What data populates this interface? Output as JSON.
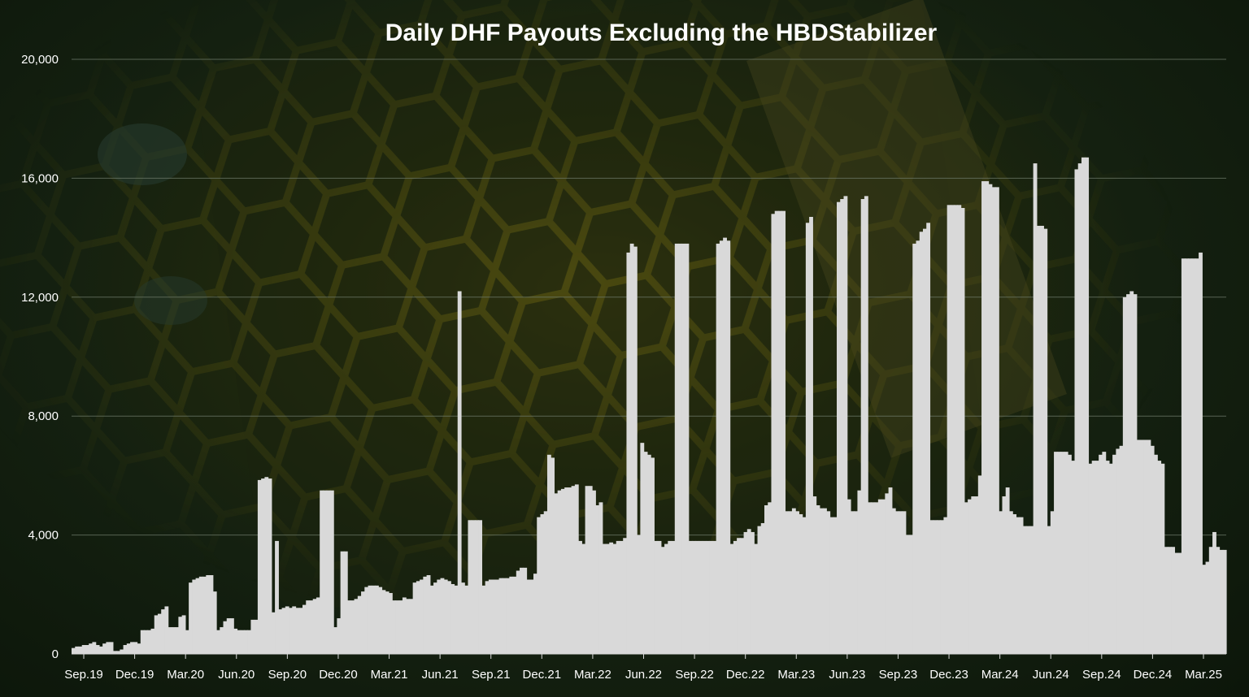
{
  "chart_data": {
    "type": "bar",
    "title": "Daily DHF Payouts Excluding the HBDStabilizer",
    "xlabel": "",
    "ylabel": "",
    "ylim": [
      0,
      20000
    ],
    "yticks": [
      0,
      4000,
      8000,
      12000,
      16000,
      20000
    ],
    "ytick_labels": [
      "0",
      "4,000",
      "8,000",
      "12,000",
      "16,000",
      "20,000"
    ],
    "xtick_labels": [
      "Sep.19",
      "Dec.19",
      "Mar.20",
      "Jun.20",
      "Sep.20",
      "Dec.20",
      "Mar.21",
      "Jun.21",
      "Sep.21",
      "Dec.21",
      "Mar.22",
      "Jun.22",
      "Sep.22",
      "Dec.22",
      "Mar.23",
      "Jun.23",
      "Sep.23",
      "Dec.23",
      "Mar.24",
      "Jun.24",
      "Sep.24",
      "Dec.24",
      "Mar.25"
    ],
    "grid": true,
    "legend": "none",
    "bar_color": "#d9d9d9",
    "series": [
      {
        "values": [
          200,
          250,
          250,
          300,
          300,
          350,
          400,
          300,
          250,
          350,
          400,
          400,
          100,
          100,
          150,
          300,
          350,
          400,
          400,
          350,
          800,
          800,
          800,
          850,
          1300,
          1350,
          1500,
          1600,
          900,
          900,
          900,
          1250,
          1300,
          800,
          2400,
          2500,
          2550,
          2600,
          2600,
          2650,
          2650,
          2100,
          800,
          900,
          1100,
          1200,
          1200,
          850,
          800,
          800,
          800,
          800,
          1150,
          1150,
          5850,
          5900,
          5950,
          5900,
          1400,
          3800,
          1500,
          1550,
          1600,
          1550,
          1600,
          1550,
          1550,
          1650,
          1800,
          1800,
          1850,
          1900,
          5500,
          5500,
          5500,
          5500,
          900,
          1200,
          3450,
          3450,
          1800,
          1800,
          1850,
          1950,
          2100,
          2250,
          2300,
          2300,
          2300,
          2250,
          2150,
          2100,
          2050,
          1800,
          1800,
          1800,
          1900,
          1850,
          1850,
          2400,
          2450,
          2500,
          2600,
          2650,
          2300,
          2400,
          2500,
          2550,
          2500,
          2450,
          2350,
          2300,
          12200,
          2400,
          2300,
          4500,
          4500,
          4500,
          4500,
          2300,
          2450,
          2500,
          2500,
          2500,
          2550,
          2550,
          2550,
          2600,
          2600,
          2800,
          2900,
          2900,
          2500,
          2500,
          2700,
          4600,
          4700,
          4800,
          6700,
          6600,
          5400,
          5500,
          5550,
          5600,
          5600,
          5650,
          5700,
          3800,
          3700,
          5650,
          5650,
          5500,
          5000,
          5100,
          3700,
          3700,
          3750,
          3700,
          3800,
          3800,
          3900,
          13500,
          13800,
          13700,
          4000,
          7100,
          6800,
          6700,
          6600,
          3800,
          3800,
          3600,
          3700,
          3800,
          3800,
          13800,
          13800,
          13800,
          13800,
          3800,
          3800,
          3800,
          3800,
          3800,
          3800,
          3800,
          3800,
          13800,
          13900,
          14000,
          13900,
          3700,
          3800,
          3900,
          3900,
          4100,
          4200,
          4100,
          3700,
          4300,
          4400,
          5000,
          5100,
          14800,
          14900,
          14900,
          14900,
          4800,
          4800,
          4900,
          4800,
          4700,
          4600,
          14500,
          14700,
          5300,
          5000,
          4900,
          4900,
          4800,
          4600,
          4600,
          15200,
          15300,
          15400,
          5200,
          4800,
          4800,
          5500,
          15300,
          15400,
          5100,
          5100,
          5100,
          5200,
          5200,
          5400,
          5600,
          4900,
          4800,
          4800,
          4800,
          4000,
          4000,
          13800,
          13900,
          14200,
          14300,
          14500,
          4500,
          4500,
          4500,
          4500,
          4600,
          15100,
          15100,
          15100,
          15100,
          15000,
          5100,
          5200,
          5300,
          5300,
          6000,
          15900,
          15900,
          15800,
          15700,
          15700,
          4800,
          5300,
          5600,
          4800,
          4700,
          4600,
          4600,
          4300,
          4300,
          4300,
          16500,
          14400,
          14400,
          14300,
          4300,
          4800,
          6800,
          6800,
          6800,
          6800,
          6700,
          6500,
          16300,
          16500,
          16700,
          16700,
          6400,
          6500,
          6500,
          6700,
          6800,
          6500,
          6400,
          6700,
          6900,
          7000,
          12000,
          12100,
          12200,
          12100,
          7200,
          7200,
          7200,
          7200,
          7000,
          6700,
          6500,
          6400,
          3600,
          3600,
          3600,
          3400,
          3400,
          13300,
          13300,
          13300,
          13300,
          13300,
          13500,
          3000,
          3100,
          3600,
          4100,
          3600,
          3500,
          3500
        ]
      }
    ]
  }
}
